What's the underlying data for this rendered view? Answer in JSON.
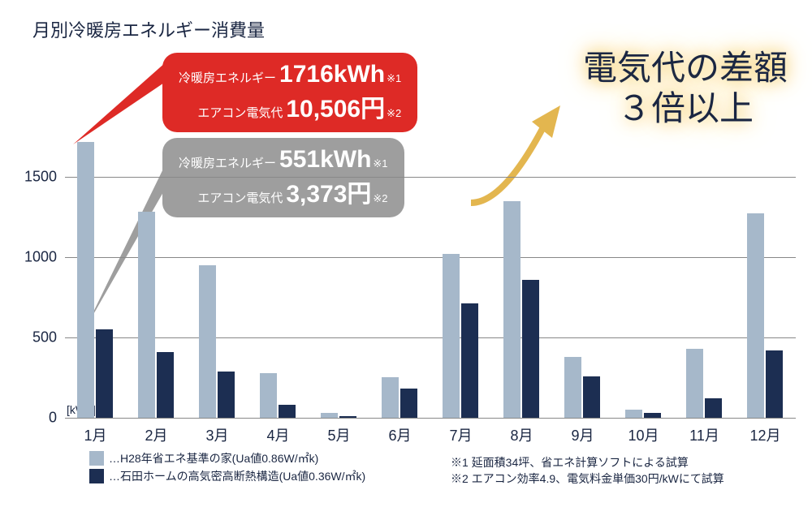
{
  "title": "月別冷暖房エネルギー消費量",
  "chart": {
    "type": "bar",
    "ylim_max": 1716,
    "yticks": [
      0,
      500,
      1000,
      1500
    ],
    "unit": "[kWh]",
    "categories": [
      "1月",
      "2月",
      "3月",
      "4月",
      "5月",
      "6月",
      "7月",
      "8月",
      "9月",
      "10月",
      "11月",
      "12月"
    ],
    "series": [
      {
        "name": "H28年省エネ基準の家(Ua値0.86W/㎡k)",
        "color": "#a6b8ca",
        "values": [
          1716,
          1280,
          950,
          280,
          30,
          250,
          1020,
          1350,
          380,
          50,
          430,
          1270
        ]
      },
      {
        "name": "石田ホームの高気密高断熱構造(Ua値0.36W/㎡k)",
        "color": "#1c2e52",
        "values": [
          551,
          410,
          290,
          80,
          10,
          180,
          710,
          860,
          260,
          30,
          120,
          420
        ]
      }
    ],
    "grid_color": "#888888",
    "background": "#ffffff"
  },
  "callouts": {
    "red": {
      "energy_label": "冷暖房エネルギー",
      "energy_value": "1716kWh",
      "energy_sup": "※1",
      "cost_label": "エアコン電気代",
      "cost_value": "10,506円",
      "cost_sup": "※2"
    },
    "gray": {
      "energy_label": "冷暖房エネルギー",
      "energy_value": "551kWh",
      "energy_sup": "※1",
      "cost_label": "エアコン電気代",
      "cost_value": "3,373円",
      "cost_sup": "※2"
    }
  },
  "headline": {
    "line1": "電気代の差額",
    "line2": "３倍以上"
  },
  "legend_prefix": "…",
  "notes": {
    "n1": "※1 延面積34坪、省エネ計算ソフトによる試算",
    "n2": "※2 エアコン効率4.9、電気料金単価30円/kWにて試算"
  }
}
